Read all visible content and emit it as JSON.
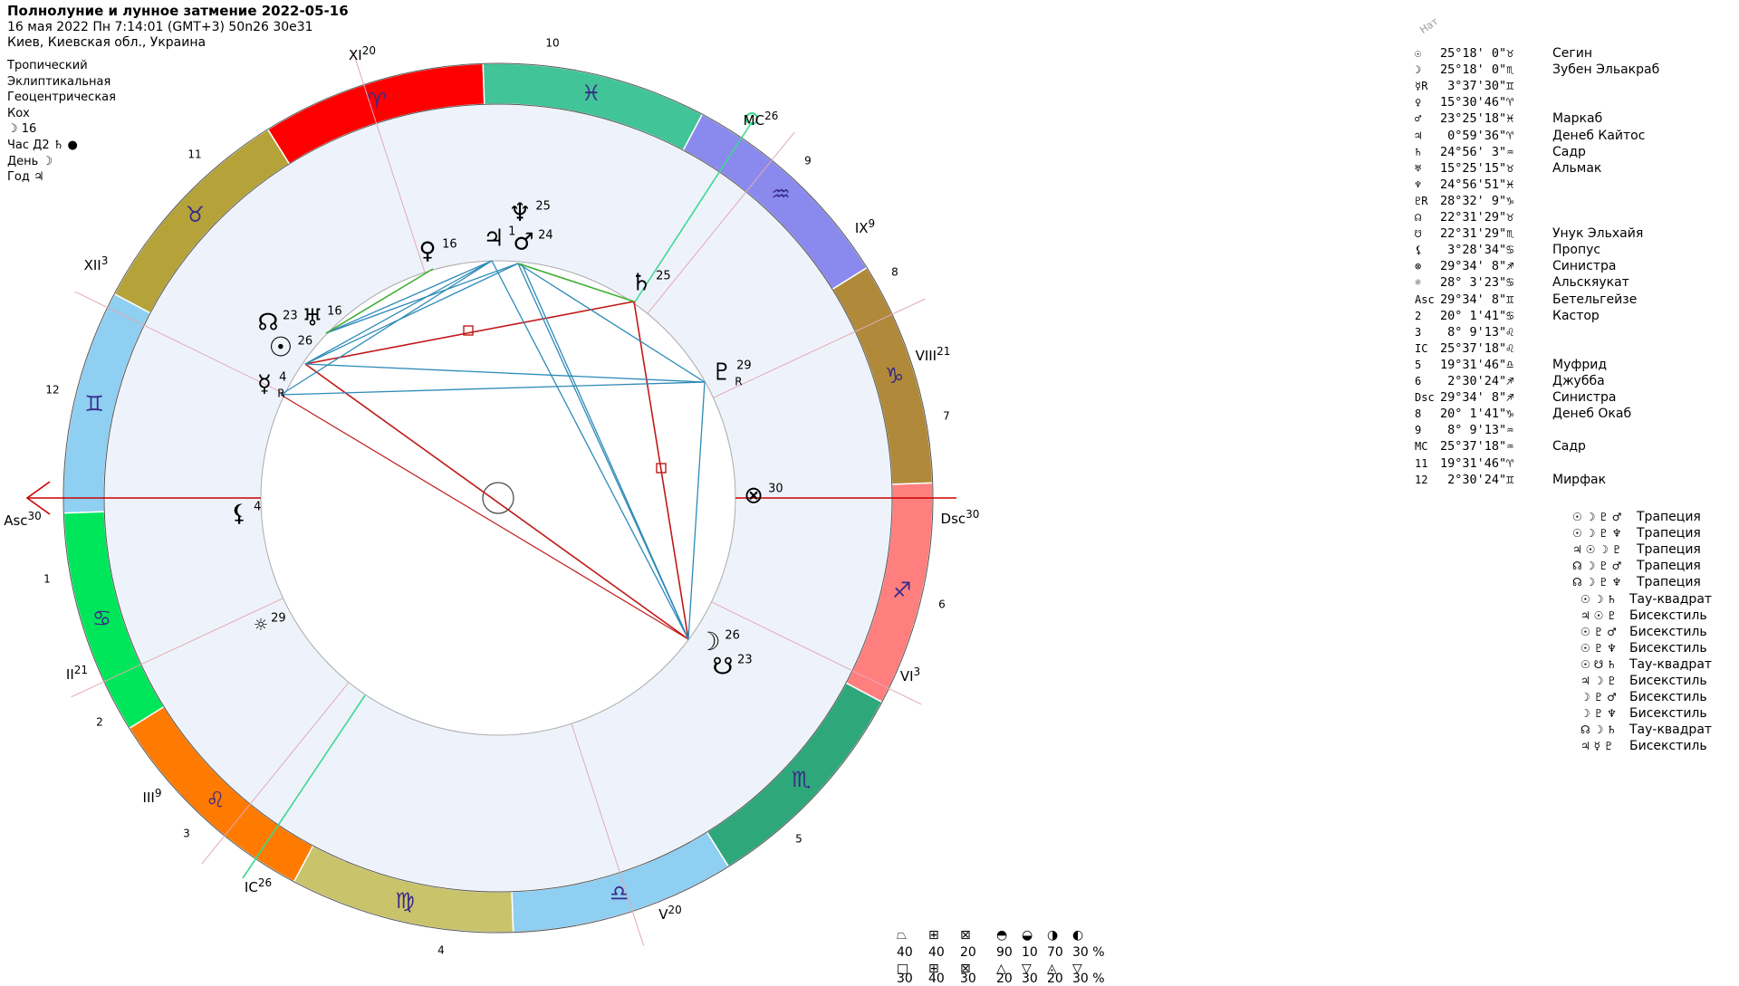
{
  "header": {
    "title": "Полнолуние и лунное затмение 2022-05-16",
    "datetime": "16 мая 2022  Пн   7:14:01 (GMT+3) 50n26  30e31",
    "place": "Киев, Киевская обл., Украина"
  },
  "settings": [
    "Тропический",
    "Эклиптикальная",
    "Геоцентрическая",
    "Кох",
    "☽  16",
    "Час Д2 ♄ ●",
    "День ☽",
    "Год ♃"
  ],
  "nat_label": "Нат",
  "zodiac_signs": [
    "♈",
    "♉",
    "♊",
    "♋",
    "♌",
    "♍",
    "♎",
    "♏",
    "♐",
    "♑",
    "♒",
    "♓"
  ],
  "sign_colors": [
    "#ff0000",
    "#b5a33a",
    "#8ecff2",
    "#00e65a",
    "#ff7a00",
    "#c9c36b",
    "#8ecff2",
    "#2ea87a",
    "#ff7f7f",
    "#b08a3a",
    "#8a8aee",
    "#40c498"
  ],
  "cusps": [
    {
      "label": "Asc",
      "deg": "30"
    },
    {
      "label": "II",
      "deg": "21"
    },
    {
      "label": "III",
      "deg": "9"
    },
    {
      "label": "IC",
      "deg": "26"
    },
    {
      "label": "V",
      "deg": "20"
    },
    {
      "label": "VI",
      "deg": "3"
    },
    {
      "label": "Dsc",
      "deg": "30"
    },
    {
      "label": "VIII",
      "deg": "21"
    },
    {
      "label": "IX",
      "deg": "9"
    },
    {
      "label": "MC",
      "deg": "26"
    },
    {
      "label": "XI",
      "deg": "20"
    },
    {
      "label": "XII",
      "deg": "3"
    }
  ],
  "house_numbers": [
    "1",
    "2",
    "3",
    "4",
    "5",
    "6",
    "7",
    "8",
    "9",
    "10",
    "11",
    "12"
  ],
  "chart_planets": [
    {
      "glyph": "☉",
      "deg": "26"
    },
    {
      "glyph": "☽",
      "deg": "26"
    },
    {
      "glyph": "☿",
      "deg": "4",
      "retro": "R"
    },
    {
      "glyph": "♀",
      "deg": "16"
    },
    {
      "glyph": "♂",
      "deg": "24"
    },
    {
      "glyph": "♃",
      "deg": "1"
    },
    {
      "glyph": "♄",
      "deg": "25"
    },
    {
      "glyph": "♅",
      "deg": "16"
    },
    {
      "glyph": "♆",
      "deg": "25"
    },
    {
      "glyph": "♇",
      "deg": "29",
      "retro": "R"
    },
    {
      "glyph": "☊",
      "deg": "23"
    },
    {
      "glyph": "☋",
      "deg": "23"
    },
    {
      "glyph": "⚸",
      "deg": "4"
    },
    {
      "glyph": "⊗",
      "deg": "30"
    },
    {
      "glyph": "☼",
      "deg": "29"
    }
  ],
  "positions": [
    {
      "glyph": "☉",
      "pos": "25°18' 0\"♉",
      "star": "Сегин"
    },
    {
      "glyph": "☽",
      "pos": "25°18' 0\"♏",
      "star": "Зубен Эльакраб"
    },
    {
      "glyph": "☿R",
      "pos": " 3°37'30\"♊",
      "star": ""
    },
    {
      "glyph": "♀",
      "pos": "15°30'46\"♈",
      "star": ""
    },
    {
      "glyph": "♂",
      "pos": "23°25'18\"♓",
      "star": "Маркаб"
    },
    {
      "glyph": "♃",
      "pos": " 0°59'36\"♈",
      "star": "Денеб Кайтос"
    },
    {
      "glyph": "♄",
      "pos": "24°56' 3\"♒",
      "star": "Садр"
    },
    {
      "glyph": "♅",
      "pos": "15°25'15\"♉",
      "star": "Альмак"
    },
    {
      "glyph": "♆",
      "pos": "24°56'51\"♓",
      "star": ""
    },
    {
      "glyph": "♇R",
      "pos": "28°32' 9\"♑",
      "star": ""
    },
    {
      "glyph": "☊",
      "pos": "22°31'29\"♉",
      "star": ""
    },
    {
      "glyph": "☋",
      "pos": "22°31'29\"♏",
      "star": "Унук Эльхайя"
    },
    {
      "glyph": "⚸",
      "pos": " 3°28'34\"♋",
      "star": "Пропус"
    },
    {
      "glyph": "⊗",
      "pos": "29°34' 8\"♐",
      "star": "Синистра"
    },
    {
      "glyph": "☼",
      "pos": "28° 3'23\"♋",
      "star": "Альскяукат"
    },
    {
      "glyph": "Asc",
      "pos": "29°34' 8\"♊",
      "star": "Бетельгейзе"
    },
    {
      "glyph": "2",
      "pos": "20° 1'41\"♋",
      "star": "Кастор"
    },
    {
      "glyph": "3",
      "pos": " 8° 9'13\"♌",
      "star": ""
    },
    {
      "glyph": "IC",
      "pos": "25°37'18\"♌",
      "star": ""
    },
    {
      "glyph": "5",
      "pos": "19°31'46\"♎",
      "star": "Муфрид"
    },
    {
      "glyph": "6",
      "pos": " 2°30'24\"♐",
      "star": "Джубба"
    },
    {
      "glyph": "Dsc",
      "pos": "29°34' 8\"♐",
      "star": "Синистра"
    },
    {
      "glyph": "8",
      "pos": "20° 1'41\"♑",
      "star": "Денеб Окаб"
    },
    {
      "glyph": "9",
      "pos": " 8° 9'13\"♒",
      "star": ""
    },
    {
      "glyph": "MC",
      "pos": "25°37'18\"♒",
      "star": "Садр"
    },
    {
      "glyph": "11",
      "pos": "19°31'46\"♈",
      "star": ""
    },
    {
      "glyph": "12",
      "pos": " 2°30'24\"♊",
      "star": "Мирфак"
    }
  ],
  "patterns": [
    {
      "glyphs": "☉ ☽ ♇ ♂",
      "name": "Трапеция"
    },
    {
      "glyphs": "☉ ☽ ♇ ♆",
      "name": "Трапеция"
    },
    {
      "glyphs": "♃ ☉ ☽ ♇",
      "name": "Трапеция"
    },
    {
      "glyphs": "☊ ☽ ♇ ♂",
      "name": "Трапеция"
    },
    {
      "glyphs": "☊ ☽ ♇ ♆",
      "name": "Трапеция"
    },
    {
      "glyphs": "☉ ☽ ♄",
      "name": "Тау-квадрат"
    },
    {
      "glyphs": "♃ ☉ ♇",
      "name": "Бисекстиль"
    },
    {
      "glyphs": "☉ ♇ ♂",
      "name": "Бисекстиль"
    },
    {
      "glyphs": "☉ ♇ ♆",
      "name": "Бисекстиль"
    },
    {
      "glyphs": "☉ ☋ ♄",
      "name": "Тау-квадрат"
    },
    {
      "glyphs": "♃ ☽ ♇",
      "name": "Бисекстиль"
    },
    {
      "glyphs": "☽ ♇ ♂",
      "name": "Бисекстиль"
    },
    {
      "glyphs": "☽ ♇ ♆",
      "name": "Бисекстиль"
    },
    {
      "glyphs": "☊ ☽ ♄",
      "name": "Тау-квадрат"
    },
    {
      "glyphs": "♃ ☿ ♇",
      "name": "Бисекстиль"
    }
  ],
  "stats": {
    "left_top_values": [
      "40",
      "40",
      "20"
    ],
    "left_bottom_values": [
      "30",
      "40",
      "30"
    ],
    "right_top_values": [
      "90",
      "10",
      "70",
      "30 %"
    ],
    "right_bottom_values": [
      "20",
      "30",
      "20",
      "30 %"
    ],
    "left_top_glyphs": [
      "⏢",
      "⊞",
      "⊠"
    ],
    "left_bottom_glyphs": [
      "□",
      "⊞",
      "⊠"
    ],
    "right_top_glyphs": [
      "◓",
      "◒",
      "◑",
      "◐"
    ],
    "right_bottom_glyphs": [
      "△",
      "▽",
      "◬",
      "▽"
    ]
  }
}
